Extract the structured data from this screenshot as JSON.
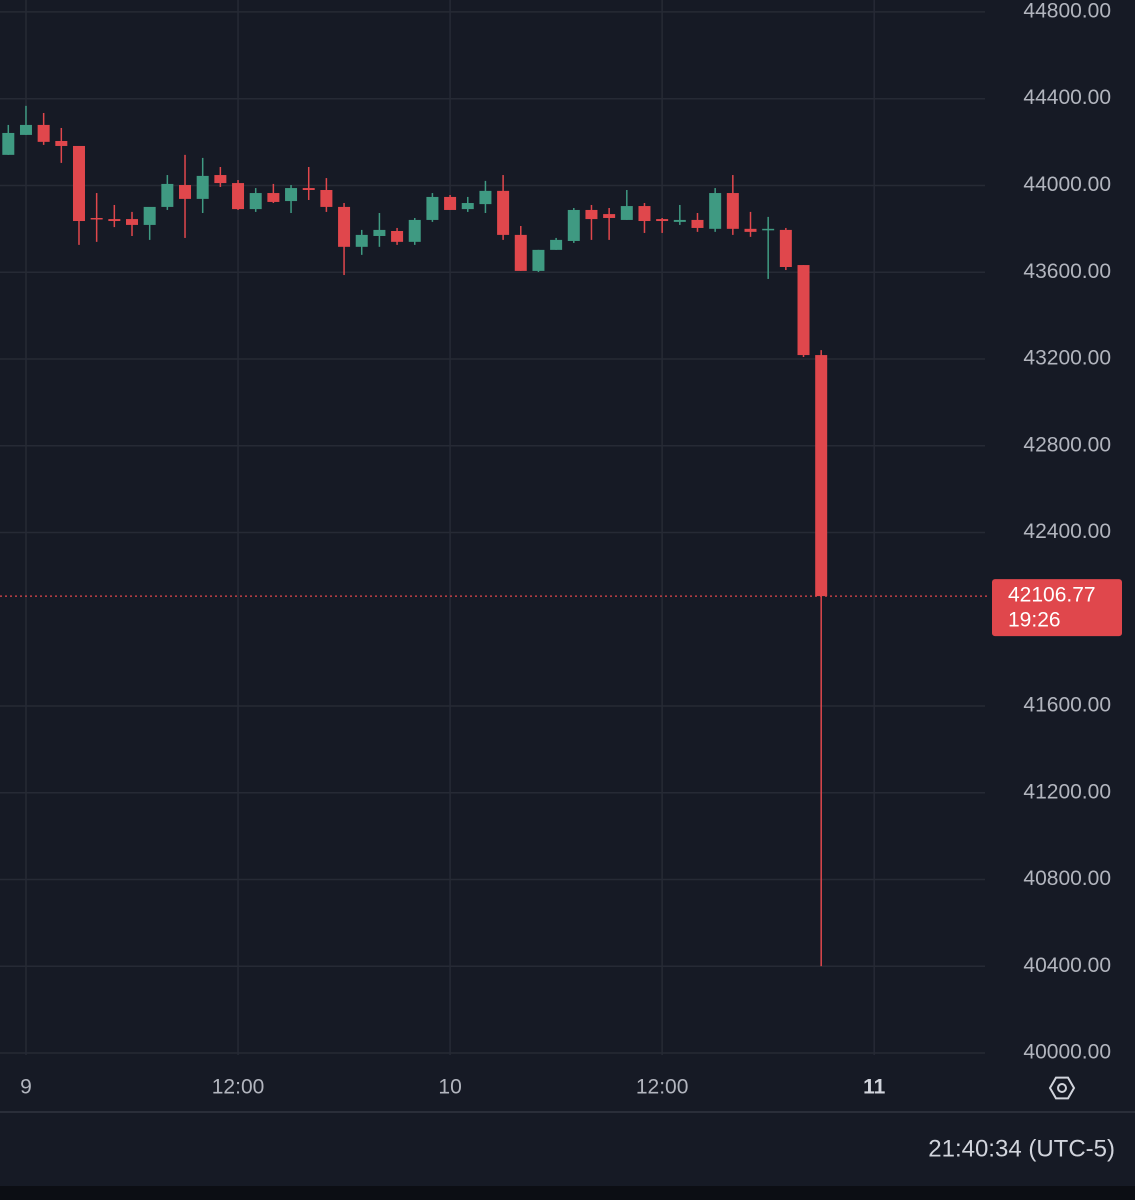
{
  "chart_data": {
    "type": "candlestick",
    "x": [
      -1,
      0,
      1,
      2,
      3,
      4,
      5,
      6,
      7,
      8,
      9,
      10,
      11,
      12,
      13,
      14,
      15,
      16,
      17,
      18,
      19,
      20,
      21,
      22,
      23,
      24,
      25,
      26,
      27,
      28,
      29,
      30,
      31,
      32,
      33,
      34,
      35,
      36,
      37,
      38,
      39,
      40,
      41,
      42,
      43,
      44,
      45
    ],
    "open": [
      44141,
      44233,
      44279,
      44205,
      44182,
      43850,
      43845,
      43845,
      43818,
      43901,
      44002,
      43938,
      44048,
      44011,
      43891,
      43965,
      43928,
      43988,
      43979,
      43901,
      43717,
      43767,
      43790,
      43740,
      43841,
      43947,
      43891,
      43914,
      43975,
      43772,
      43606,
      43703,
      43744,
      43887,
      43868,
      43841,
      43905,
      43845,
      43832,
      43841,
      43800,
      43965,
      43800,
      43795,
      43795,
      43633,
      43218
    ],
    "high": [
      44279,
      44367,
      44334,
      44265,
      44182,
      43965,
      43910,
      43878,
      43900,
      44048,
      44141,
      44127,
      44085,
      44025,
      43988,
      44007,
      44002,
      44085,
      44034,
      43919,
      43795,
      43873,
      43804,
      43850,
      43965,
      43956,
      43947,
      44021,
      44048,
      43813,
      43703,
      43758,
      43896,
      43910,
      43896,
      43979,
      43919,
      43850,
      43910,
      43873,
      43988,
      44048,
      43878,
      43855,
      43804,
      43633,
      43241
    ],
    "low": [
      44141,
      44233,
      44187,
      44104,
      43726,
      43740,
      43808,
      43767,
      43749,
      43887,
      43758,
      43873,
      43993,
      43887,
      43878,
      43919,
      43873,
      43933,
      43878,
      43587,
      43680,
      43717,
      43726,
      43726,
      43832,
      43887,
      43878,
      43873,
      43749,
      43606,
      43601,
      43703,
      43735,
      43749,
      43749,
      43841,
      43781,
      43781,
      43818,
      43786,
      43786,
      43772,
      43763,
      43569,
      43610,
      43209,
      40401
    ],
    "close": [
      44242,
      44279,
      44201,
      44182,
      43836,
      43845,
      43836,
      43818,
      43901,
      44007,
      43938,
      44044,
      44011,
      43891,
      43965,
      43924,
      43988,
      43979,
      43901,
      43717,
      43772,
      43795,
      43740,
      43841,
      43947,
      43887,
      43919,
      43975,
      43772,
      43606,
      43703,
      43749,
      43887,
      43845,
      43850,
      43905,
      43836,
      43836,
      43841,
      43804,
      43965,
      43800,
      43786,
      43800,
      43624,
      43218,
      42106.77
    ],
    "up_color": "#3f9a82",
    "down_color": "#e0474c",
    "ylim": [
      39991,
      44855
    ],
    "yticks": [
      {
        "value": 40000,
        "label": "40000.00"
      },
      {
        "value": 40400,
        "label": "40400.00"
      },
      {
        "value": 40800,
        "label": "40800.00"
      },
      {
        "value": 41200,
        "label": "41200.00"
      },
      {
        "value": 41600,
        "label": "41600.00"
      },
      {
        "value": 42400,
        "label": "42400.00"
      },
      {
        "value": 42800,
        "label": "42800.00"
      },
      {
        "value": 43200,
        "label": "43200.00"
      },
      {
        "value": 43600,
        "label": "43600.00"
      },
      {
        "value": 44000,
        "label": "44000.00"
      },
      {
        "value": 44400,
        "label": "44400.00"
      },
      {
        "value": 44800,
        "label": "44800.00"
      }
    ],
    "xlim": [
      -1.47,
      54.27
    ],
    "xticks": [
      {
        "value": 0,
        "label": "9"
      },
      {
        "value": 12,
        "label": "12:00"
      },
      {
        "value": 24,
        "label": "10"
      },
      {
        "value": 36,
        "label": "12:00"
      },
      {
        "value": 48,
        "label": "11"
      }
    ],
    "grid": true,
    "last_price": 42106.77,
    "countdown": "19:26",
    "clock": "21:40:34 (UTC-5)"
  }
}
